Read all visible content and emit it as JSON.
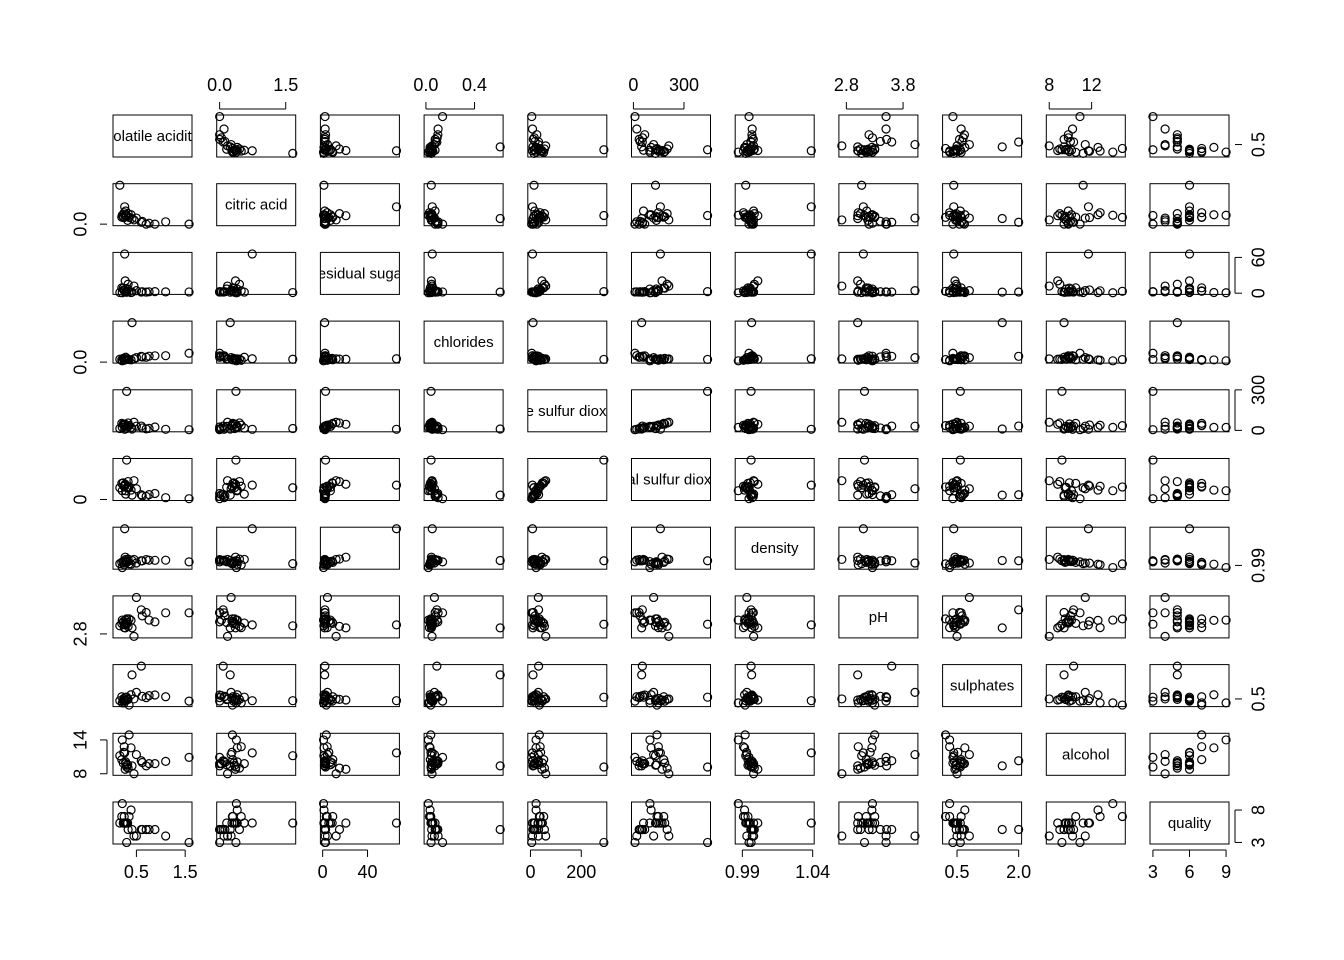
{
  "chart_data": {
    "type": "scatter_matrix",
    "variables": [
      {
        "name": "volatile acidity",
        "lim": [
          0.08,
          1.58
        ],
        "xticks": [
          0.5,
          1.5
        ],
        "yticks": [
          0.5
        ]
      },
      {
        "name": "citric acid",
        "lim": [
          0,
          1.66
        ],
        "xticks": [
          {
            "value": 0,
            "label": "0.0"
          },
          1.5
        ],
        "yticks": [
          {
            "value": 0,
            "label": "0.0"
          }
        ]
      },
      {
        "name": "residual sugar",
        "lim": [
          0.6,
          65.8
        ],
        "xticks": [
          0,
          40
        ],
        "yticks": [
          0,
          60
        ]
      },
      {
        "name": "chlorides",
        "lim": [
          0.009,
          0.611
        ],
        "xticks": [
          {
            "value": 0,
            "label": "0.0"
          },
          0.4
        ],
        "yticks": [
          {
            "value": 0,
            "label": "0.0"
          }
        ]
      },
      {
        "name": "free sulfur dioxide",
        "lim": [
          1,
          289
        ],
        "xticks": [
          0,
          200
        ],
        "yticks": [
          0,
          300
        ]
      },
      {
        "name": "total sulfur dioxide",
        "lim": [
          6,
          440
        ],
        "xticks": [
          0,
          300
        ],
        "yticks": [
          0
        ]
      },
      {
        "name": "density",
        "lim": [
          0.987,
          1.039
        ],
        "xticks": [
          0.99,
          1.04
        ],
        "yticks": [
          0.99
        ]
      },
      {
        "name": "pH",
        "lim": [
          2.72,
          4.01
        ],
        "xticks": [
          2.8,
          3.8
        ],
        "yticks": [
          2.8
        ]
      },
      {
        "name": "sulphates",
        "lim": [
          0.22,
          2.0
        ],
        "xticks": [
          0.5,
          {
            "value": 2,
            "label": "2.0"
          }
        ],
        "yticks": [
          0.5
        ]
      },
      {
        "name": "alcohol",
        "lim": [
          8,
          14.9
        ],
        "xticks": [
          8,
          12
        ],
        "yticks": [
          8,
          14
        ]
      },
      {
        "name": "quality",
        "lim": [
          3,
          9
        ],
        "xticks": [
          3,
          6,
          9
        ],
        "yticks": [
          3,
          8
        ]
      }
    ],
    "observations": [
      [
        0.27,
        0.36,
        20.7,
        0.045,
        45,
        170,
        1.001,
        3.0,
        0.45,
        8.8,
        6
      ],
      [
        0.3,
        0.34,
        1.6,
        0.049,
        14,
        132,
        0.994,
        3.3,
        0.49,
        9.5,
        6
      ],
      [
        0.28,
        0.4,
        6.9,
        0.05,
        30,
        97,
        0.9951,
        3.26,
        0.44,
        10.1,
        6
      ],
      [
        0.23,
        0.32,
        8.5,
        0.058,
        47,
        186,
        0.9956,
        3.19,
        0.4,
        9.9,
        6
      ],
      [
        0.32,
        0.16,
        7.0,
        0.045,
        30,
        136,
        0.9949,
        3.18,
        0.47,
        9.6,
        6
      ],
      [
        0.7,
        0.0,
        1.9,
        0.076,
        11,
        34,
        0.9978,
        3.51,
        0.56,
        9.4,
        5
      ],
      [
        0.88,
        0.0,
        2.6,
        0.098,
        25,
        67,
        0.9968,
        3.2,
        0.68,
        9.8,
        5
      ],
      [
        0.76,
        0.04,
        2.3,
        0.092,
        15,
        54,
        0.997,
        3.26,
        0.65,
        9.8,
        5
      ],
      [
        0.28,
        0.56,
        1.9,
        0.075,
        17,
        60,
        0.998,
        3.16,
        0.58,
        9.8,
        6
      ],
      [
        1.58,
        0.0,
        2.1,
        0.137,
        5,
        9,
        0.99476,
        3.5,
        0.4,
        10.9,
        3
      ],
      [
        0.16,
        1.66,
        1.1,
        0.044,
        14,
        131,
        0.9924,
        3.07,
        0.42,
        11.2,
        6
      ],
      [
        0.26,
        0.74,
        65.8,
        0.052,
        8,
        160,
        1.039,
        3.1,
        0.42,
        11.7,
        6
      ],
      [
        0.41,
        0.24,
        1.8,
        0.611,
        10,
        49,
        0.9966,
        3.0,
        1.6,
        9.4,
        5
      ],
      [
        0.3,
        0.37,
        2.6,
        0.042,
        289,
        440,
        0.9962,
        3.12,
        0.58,
        9.2,
        3
      ],
      [
        0.25,
        0.49,
        4.0,
        0.029,
        38,
        148,
        0.9908,
        3.01,
        0.32,
        12.8,
        7
      ],
      [
        0.39,
        0.4,
        1.2,
        0.034,
        22,
        105,
        0.9916,
        3.25,
        0.69,
        12.6,
        8
      ],
      [
        0.21,
        0.38,
        0.8,
        0.02,
        22,
        98,
        0.98711,
        3.26,
        0.32,
        14.0,
        9
      ],
      [
        0.6,
        0.08,
        2.0,
        0.09,
        32,
        53,
        0.9962,
        3.6,
        2.0,
        10.3,
        5
      ],
      [
        0.5,
        0.26,
        4.3,
        0.07,
        31,
        120,
        0.9932,
        4.01,
        0.8,
        11.4,
        4
      ],
      [
        0.45,
        0.18,
        12.0,
        0.05,
        60,
        210,
        0.998,
        2.72,
        0.5,
        8.0,
        4
      ],
      [
        0.35,
        0.29,
        3.2,
        0.04,
        35,
        140,
        0.992,
        3.3,
        0.22,
        14.9,
        7
      ],
      [
        0.2,
        0.3,
        9.0,
        0.036,
        52,
        180,
        0.994,
        3.15,
        0.6,
        10.5,
        7
      ],
      [
        0.62,
        0.12,
        2.4,
        0.08,
        18,
        40,
        0.996,
        3.4,
        0.62,
        10.0,
        5
      ],
      [
        0.33,
        0.45,
        15.0,
        0.047,
        55,
        200,
        0.9985,
        3.05,
        0.48,
        9.0,
        5
      ],
      [
        0.24,
        0.28,
        5.5,
        0.041,
        40,
        150,
        0.993,
        3.22,
        0.52,
        11.8,
        6
      ],
      [
        1.1,
        0.1,
        2.2,
        0.1,
        8,
        20,
        0.997,
        3.5,
        0.6,
        10.2,
        4
      ]
    ]
  }
}
